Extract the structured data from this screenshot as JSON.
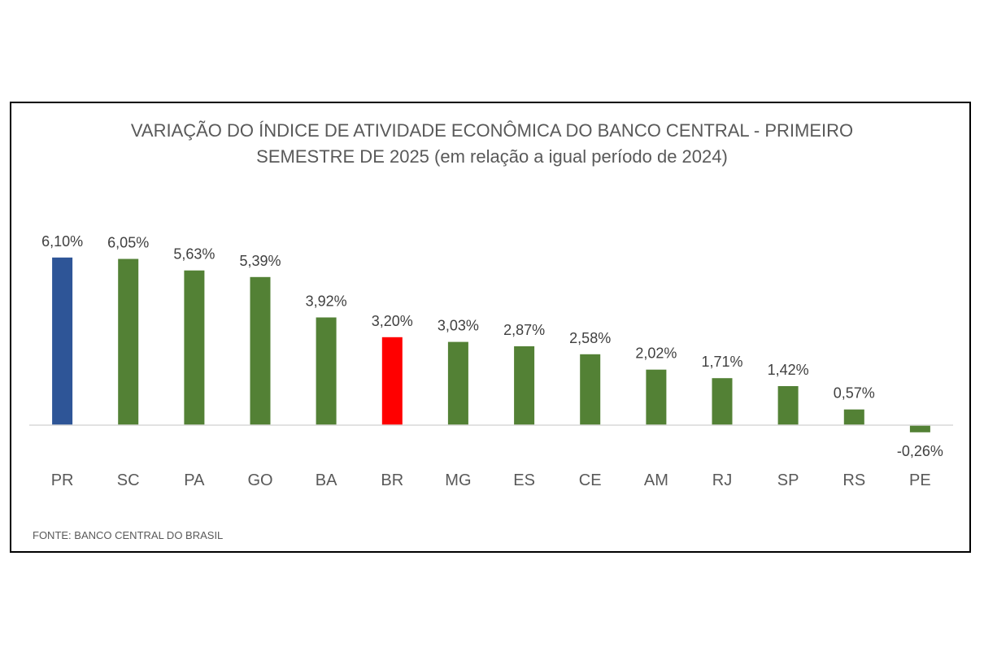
{
  "chart_data": {
    "type": "bar",
    "title_lines": [
      "VARIAÇÃO DO ÍNDICE DE ATIVIDADE ECONÔMICA DO BANCO CENTRAL - PRIMEIRO",
      "SEMESTRE DE 2025 (em relação a igual período de 2024)"
    ],
    "categories": [
      "PR",
      "SC",
      "PA",
      "GO",
      "BA",
      "BR",
      "MG",
      "ES",
      "CE",
      "AM",
      "RJ",
      "SP",
      "RS",
      "PE"
    ],
    "values": [
      6.1,
      6.05,
      5.63,
      5.39,
      3.92,
      3.2,
      3.03,
      2.87,
      2.58,
      2.02,
      1.71,
      1.42,
      0.57,
      -0.26
    ],
    "value_labels": [
      "6,10%",
      "6,05%",
      "5,63%",
      "5,39%",
      "3,92%",
      "3,20%",
      "3,03%",
      "2,87%",
      "2,58%",
      "2,02%",
      "1,71%",
      "1,42%",
      "0,57%",
      "-0,26%"
    ],
    "bar_colors": [
      "#2e5597",
      "#538135",
      "#538135",
      "#538135",
      "#538135",
      "#ff0000",
      "#538135",
      "#538135",
      "#538135",
      "#538135",
      "#538135",
      "#538135",
      "#538135",
      "#538135"
    ],
    "ylim": [
      -0.5,
      6.5
    ],
    "grid": false,
    "legend": "none"
  },
  "source": "FONTE: BANCO CENTRAL DO BRASIL",
  "colors": {
    "label_text": "#404040",
    "category_text": "#595959",
    "axis_line": "#d9d9d9"
  }
}
